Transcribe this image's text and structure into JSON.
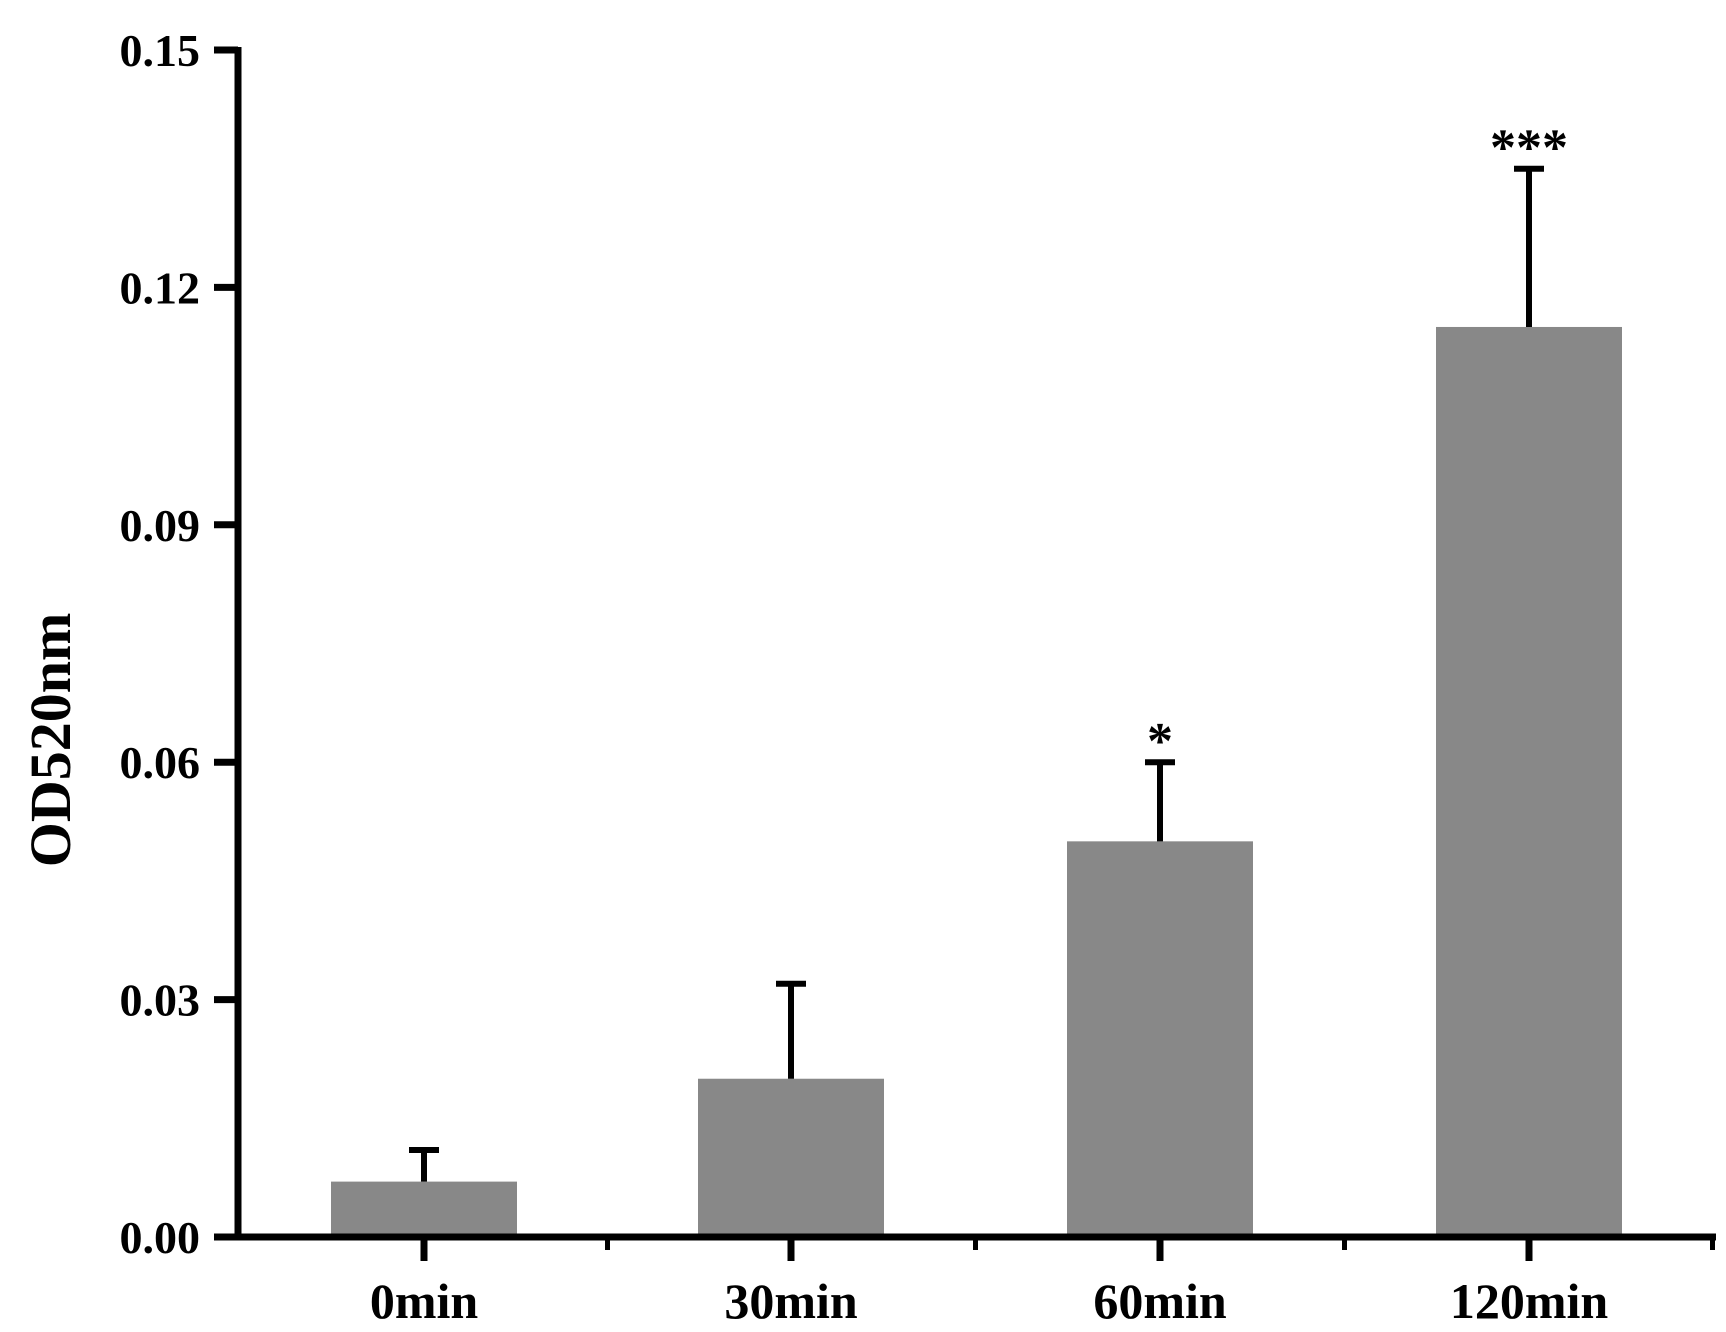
{
  "chart_data": {
    "type": "bar",
    "categories": [
      "0min",
      "30min",
      "60min",
      "120min"
    ],
    "values": [
      0.007,
      0.02,
      0.05,
      0.115
    ],
    "errors": [
      0.004,
      0.012,
      0.01,
      0.02
    ],
    "annotations": [
      "",
      "",
      "*",
      "***"
    ],
    "ylabel": "OD520nm",
    "xlabel": "",
    "ylim": [
      0,
      0.15
    ],
    "yticks": [
      0.0,
      0.03,
      0.06,
      0.09,
      0.12,
      0.15
    ],
    "ytick_labels": [
      "0.00",
      "0.03",
      "0.06",
      "0.09",
      "0.12",
      "0.15"
    ],
    "bar_color": "#888888",
    "axis_color": "#000000",
    "grid": false,
    "legend": "none"
  }
}
